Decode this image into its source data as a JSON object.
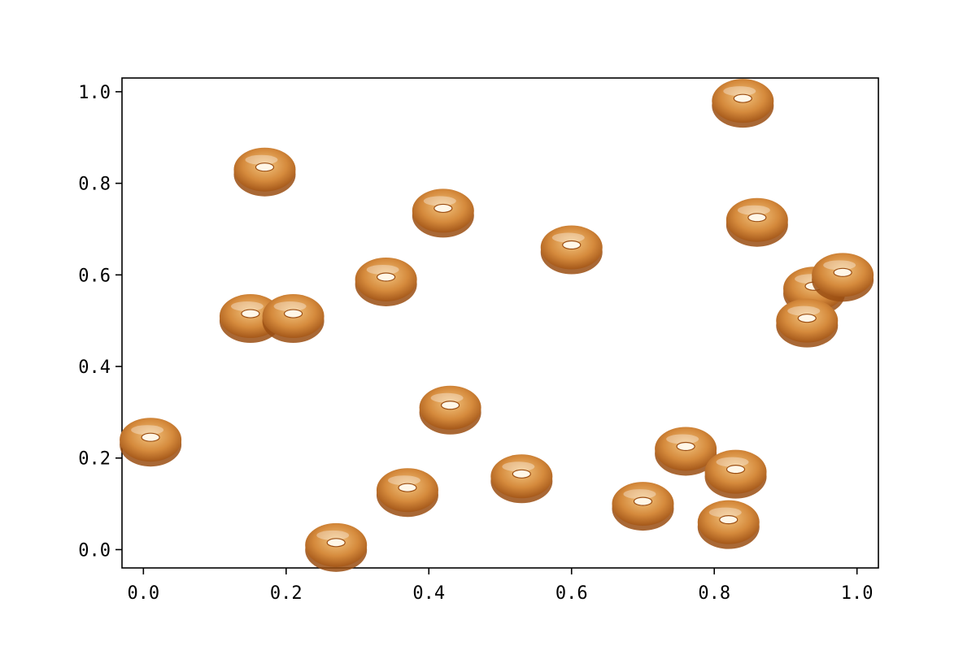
{
  "chart_data": {
    "type": "scatter",
    "title": "",
    "xlabel": "",
    "ylabel": "",
    "xlim": [
      -0.03,
      1.03
    ],
    "ylim": [
      -0.04,
      1.03
    ],
    "xticks": [
      0.0,
      0.2,
      0.4,
      0.6,
      0.8,
      1.0
    ],
    "xtick_labels": [
      "0.0",
      "0.2",
      "0.4",
      "0.6",
      "0.8",
      "1.0"
    ],
    "yticks": [
      0.0,
      0.2,
      0.4,
      0.6,
      0.8,
      1.0
    ],
    "ytick_labels": [
      "0.0",
      "0.2",
      "0.4",
      "0.6",
      "0.8",
      "1.0"
    ],
    "grid": false,
    "marker": "bagel-icon",
    "marker_colors": {
      "dark": "#9a4d12",
      "mid": "#d58a3c",
      "light": "#f2c37e",
      "hole": "#fff7e8"
    },
    "points": [
      {
        "x": 0.01,
        "y": 0.24
      },
      {
        "x": 0.17,
        "y": 0.83
      },
      {
        "x": 0.15,
        "y": 0.51
      },
      {
        "x": 0.21,
        "y": 0.51
      },
      {
        "x": 0.27,
        "y": 0.01
      },
      {
        "x": 0.34,
        "y": 0.59
      },
      {
        "x": 0.37,
        "y": 0.13
      },
      {
        "x": 0.42,
        "y": 0.74
      },
      {
        "x": 0.43,
        "y": 0.31
      },
      {
        "x": 0.53,
        "y": 0.16
      },
      {
        "x": 0.6,
        "y": 0.66
      },
      {
        "x": 0.7,
        "y": 0.1
      },
      {
        "x": 0.76,
        "y": 0.22
      },
      {
        "x": 0.82,
        "y": 0.06
      },
      {
        "x": 0.84,
        "y": 0.98
      },
      {
        "x": 0.83,
        "y": 0.17
      },
      {
        "x": 0.86,
        "y": 0.72
      },
      {
        "x": 0.94,
        "y": 0.57
      },
      {
        "x": 0.93,
        "y": 0.5
      },
      {
        "x": 0.98,
        "y": 0.6
      }
    ]
  }
}
